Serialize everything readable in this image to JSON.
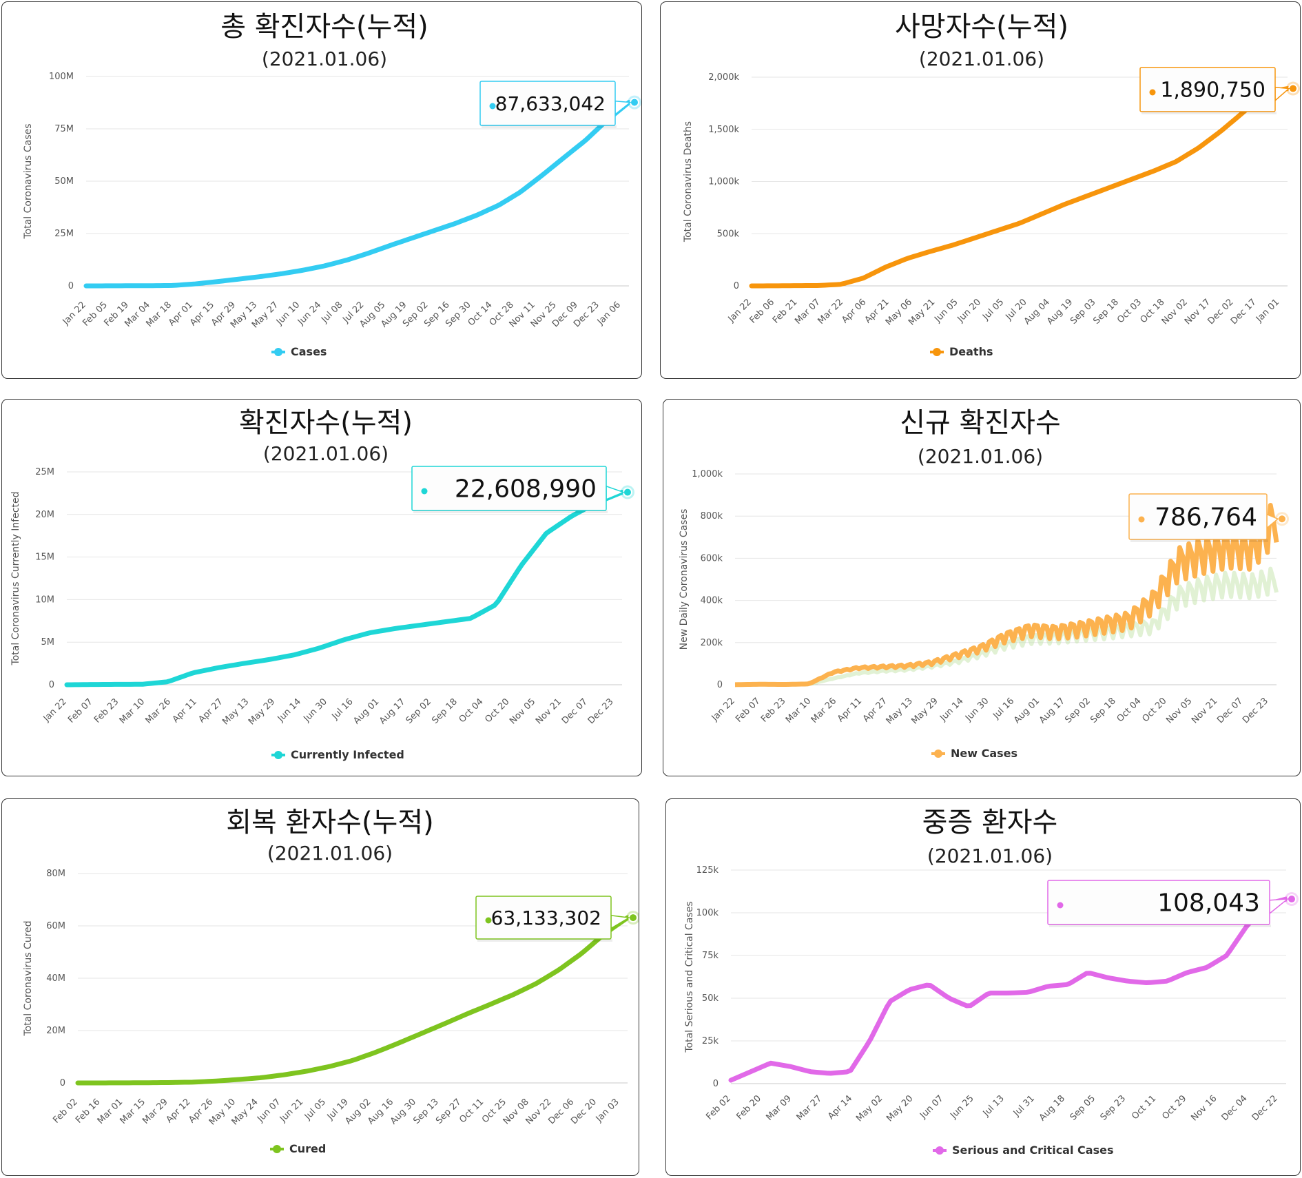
{
  "chart_data": [
    {
      "type": "line",
      "title": "총 확진자수(누적)",
      "subtitle": "(2021.01.06)",
      "ylabel": "Total Coronavirus Cases",
      "xlabel": "",
      "legend": "Cases",
      "color": "#33ccf2",
      "ylim": [
        0,
        100000000
      ],
      "yticks": [
        0,
        25000000,
        50000000,
        75000000,
        100000000
      ],
      "ytick_labels": [
        "0",
        "25M",
        "50M",
        "75M",
        "100M"
      ],
      "xticks": [
        "Jan 22",
        "Feb 05",
        "Feb 19",
        "Mar 04",
        "Mar 18",
        "Apr 01",
        "Apr 15",
        "Apr 29",
        "May 13",
        "May 27",
        "Jun 10",
        "Jun 24",
        "Jul 08",
        "Jul 22",
        "Aug 05",
        "Aug 19",
        "Sep 02",
        "Sep 16",
        "Sep 30",
        "Oct 14",
        "Oct 28",
        "Nov 11",
        "Nov 25",
        "Dec 09",
        "Dec 23",
        "Jan 06"
      ],
      "series": [
        {
          "name": "Cases",
          "values": [
            557,
            28000,
            75000,
            93000,
            200000,
            930000,
            2000000,
            3200000,
            4400000,
            5800000,
            7500000,
            9600000,
            12300000,
            15600000,
            19300000,
            22800000,
            26300000,
            29800000,
            33800000,
            38500000,
            44800000,
            52800000,
            61200000,
            69500000,
            79200000,
            87633042
          ]
        }
      ],
      "tooltip": "87,633,042"
    },
    {
      "type": "line",
      "title": "사망자수(누적)",
      "subtitle": "(2021.01.06)",
      "ylabel": "Total Coronavirus Deaths",
      "xlabel": "",
      "legend": "Deaths",
      "color": "#f7950c",
      "ylim": [
        0,
        2000000
      ],
      "yticks": [
        0,
        500000,
        1000000,
        1500000,
        2000000
      ],
      "ytick_labels": [
        "0",
        "500k",
        "1,000k",
        "1,500k",
        "2,000k"
      ],
      "xticks": [
        "Jan 22",
        "Feb 06",
        "Feb 21",
        "Mar 07",
        "Mar 22",
        "Apr 06",
        "Apr 21",
        "May 06",
        "May 21",
        "Jun 05",
        "Jun 20",
        "Jul 05",
        "Jul 20",
        "Aug 04",
        "Aug 19",
        "Sep 03",
        "Sep 18",
        "Oct 03",
        "Oct 18",
        "Nov 02",
        "Nov 17",
        "Dec 02",
        "Dec 17",
        "Jan 01"
      ],
      "series": [
        {
          "name": "Deaths",
          "values": [
            17,
            600,
            2400,
            3600,
            15000,
            74000,
            180000,
            265000,
            330000,
            390000,
            460000,
            530000,
            600000,
            690000,
            780000,
            860000,
            940000,
            1020000,
            1100000,
            1190000,
            1320000,
            1480000,
            1660000,
            1850000,
            1890750
          ]
        }
      ],
      "tooltip": "1,890,750"
    },
    {
      "type": "line",
      "title": "확진자수(누적)",
      "subtitle": "(2021.01.06)",
      "ylabel": "Total Coronavirus Currently Infected",
      "xlabel": "",
      "legend": "Currently Infected",
      "color": "#1ed6d6",
      "ylim": [
        0,
        25000000
      ],
      "yticks": [
        0,
        5000000,
        10000000,
        15000000,
        20000000,
        25000000
      ],
      "ytick_labels": [
        "0",
        "5M",
        "10M",
        "15M",
        "20M",
        "25M"
      ],
      "xticks": [
        "Jan 22",
        "Feb 07",
        "Feb 23",
        "Mar 10",
        "Mar 26",
        "Apr 11",
        "Apr 27",
        "May 13",
        "May 29",
        "Jun 14",
        "Jun 30",
        "Jul 16",
        "Aug 01",
        "Aug 17",
        "Sep 02",
        "Sep 18",
        "Oct 04",
        "Oct 20",
        "Nov 05",
        "Nov 21",
        "Dec 07",
        "Dec 23"
      ],
      "series": [
        {
          "name": "Currently Infected",
          "values": [
            500,
            28000,
            50000,
            60000,
            350000,
            1400000,
            2000000,
            2500000,
            2950000,
            3500000,
            4300000,
            5300000,
            6100000,
            6600000,
            7000000,
            7400000,
            7800000,
            9400000,
            14000000,
            17800000,
            19800000,
            21400000,
            22608990
          ]
        }
      ],
      "tooltip": "22,608,990"
    },
    {
      "type": "bar",
      "title": "신규 확진자수",
      "subtitle": "(2021.01.06)",
      "ylabel": "New Daily Coronavirus Cases",
      "xlabel": "",
      "legend": "New Cases",
      "color": "#fcb24f",
      "ylim": [
        0,
        1000000
      ],
      "yticks": [
        0,
        200000,
        400000,
        600000,
        800000,
        1000000
      ],
      "ytick_labels": [
        "0",
        "200k",
        "400k",
        "600k",
        "800k",
        "1,000k"
      ],
      "xticks": [
        "Jan 22",
        "Feb 07",
        "Feb 23",
        "Mar 10",
        "Mar 26",
        "Apr 11",
        "Apr 27",
        "May 13",
        "May 29",
        "Jun 14",
        "Jun 30",
        "Jul 16",
        "Aug 01",
        "Aug 17",
        "Sep 02",
        "Sep 18",
        "Oct 04",
        "Oct 20",
        "Nov 05",
        "Nov 21",
        "Dec 07",
        "Dec 23"
      ],
      "series": [
        {
          "name": "New Cases",
          "values": [
            500,
            2500,
            1500,
            4000,
            60000,
            80000,
            85000,
            90000,
            105000,
            140000,
            175000,
            230000,
            265000,
            255000,
            270000,
            290000,
            310000,
            400000,
            580000,
            620000,
            650000,
            640000,
            786764
          ]
        },
        {
          "name": "New Cases (secondary)",
          "values": [
            200,
            1500,
            1000,
            2500,
            30000,
            55000,
            65000,
            72000,
            88000,
            110000,
            145000,
            190000,
            220000,
            225000,
            240000,
            250000,
            265000,
            280000,
            420000,
            460000,
            480000,
            470000,
            500000
          ]
        }
      ],
      "tooltip": "786,764"
    },
    {
      "type": "line",
      "title": "회복 환자수(누적)",
      "subtitle": "(2021.01.06)",
      "ylabel": "Total Coronavirus Cured",
      "xlabel": "",
      "legend": "Cured",
      "color": "#7ec41f",
      "ylim": [
        0,
        80000000
      ],
      "yticks": [
        0,
        20000000,
        40000000,
        60000000,
        80000000
      ],
      "ytick_labels": [
        "0",
        "20M",
        "40M",
        "60M",
        "80M"
      ],
      "xticks": [
        "Feb 02",
        "Feb 16",
        "Mar 01",
        "Mar 15",
        "Mar 29",
        "Apr 12",
        "Apr 26",
        "May 10",
        "May 24",
        "Jun 07",
        "Jun 21",
        "Jul 05",
        "Jul 19",
        "Aug 02",
        "Aug 16",
        "Aug 30",
        "Sep 13",
        "Sep 27",
        "Oct 11",
        "Oct 25",
        "Nov 08",
        "Nov 22",
        "Dec 06",
        "Dec 20",
        "Jan 03"
      ],
      "series": [
        {
          "name": "Cured",
          "values": [
            500,
            10000,
            40000,
            70000,
            150000,
            300000,
            700000,
            1300000,
            2000000,
            3100000,
            4500000,
            6300000,
            8600000,
            11700000,
            15200000,
            18900000,
            22600000,
            26400000,
            30000000,
            33700000,
            37900000,
            43200000,
            49500000,
            57000000,
            63133302
          ]
        }
      ],
      "tooltip": "63,133,302"
    },
    {
      "type": "line",
      "title": "중증 환자수",
      "subtitle": "(2021.01.06)",
      "ylabel": "Total Serious and Critical Cases",
      "xlabel": "",
      "legend": "Serious and Critical Cases",
      "color": "#e169e8",
      "ylim": [
        0,
        125000
      ],
      "yticks": [
        0,
        25000,
        50000,
        75000,
        100000,
        125000
      ],
      "ytick_labels": [
        "0",
        "25k",
        "50k",
        "75k",
        "100k",
        "125k"
      ],
      "xticks": [
        "Feb 02",
        "Feb 20",
        "Mar 09",
        "Mar 27",
        "Apr 14",
        "May 02",
        "May 20",
        "Jun 07",
        "Jun 25",
        "Jul 13",
        "Jul 31",
        "Aug 18",
        "Sep 05",
        "Sep 23",
        "Oct 11",
        "Oct 29",
        "Nov 16",
        "Dec 04",
        "Dec 22"
      ],
      "series": [
        {
          "name": "Serious and Critical Cases",
          "values": [
            2000,
            7000,
            12000,
            10000,
            7000,
            6000,
            7000,
            25000,
            48000,
            55000,
            58000,
            50000,
            45000,
            53000,
            53000,
            53500,
            57000,
            58000,
            65000,
            62000,
            60000,
            59000,
            60000,
            65000,
            68000,
            75000,
            92000,
            105000,
            108043
          ]
        }
      ],
      "tooltip": "108,043"
    }
  ]
}
